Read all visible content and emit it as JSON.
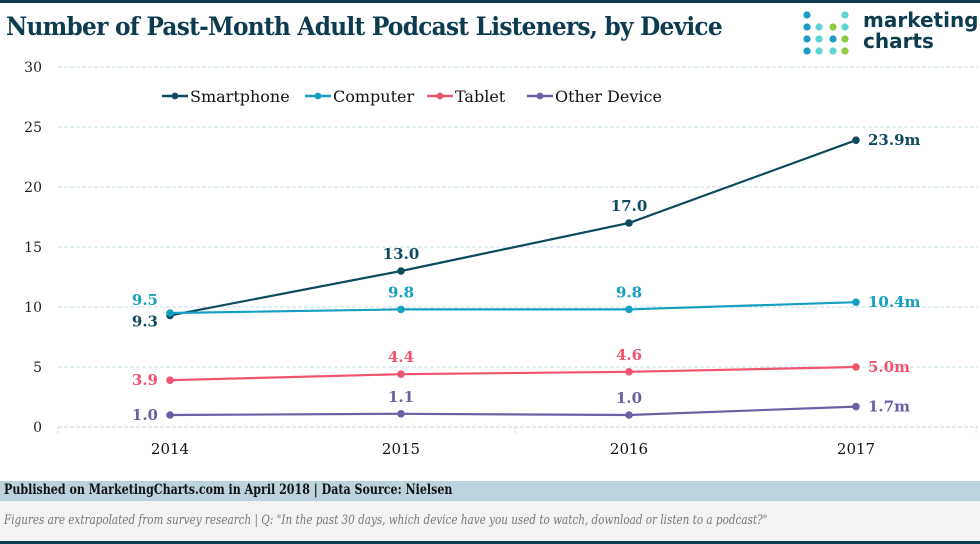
{
  "header": {
    "title": "Number of Past-Month Adult Podcast Listeners, by Device",
    "logo_line1": "marketing",
    "logo_line2": "charts"
  },
  "footer": {
    "published": "Published on MarketingCharts.com in April 2018 | Data Source: Nielsen",
    "note": "Figures are extrapolated from survey research | Q: \"In the past 30 days, which device have you used to watch, download or listen to a podcast?\""
  },
  "colors": {
    "title": "#0d3b4f",
    "smartphone": "#0d4a5e",
    "computer": "#159fc0",
    "tablet": "#f0546f",
    "other": "#6b5fa5",
    "grid": "#c5dde6",
    "footer_bar": "#bcd3de",
    "note_bar": "#f3f3f3"
  },
  "chart_data": {
    "type": "line",
    "title": "Number of Past-Month Adult Podcast Listeners, by Device",
    "xlabel": "",
    "ylabel": "",
    "units": "millions",
    "x": [
      "2014",
      "2015",
      "2016",
      "2017"
    ],
    "ylim": [
      0,
      30
    ],
    "yticks": [
      0,
      5,
      10,
      15,
      20,
      25,
      30
    ],
    "grid": true,
    "legend_position": "top-left",
    "series": [
      {
        "name": "Smartphone",
        "color_key": "smartphone",
        "values": [
          9.3,
          13.0,
          17.0,
          23.9
        ],
        "labels": [
          "9.3",
          "13.0",
          "17.0",
          "23.9m"
        ],
        "label_pos": [
          "left-below",
          "above",
          "above",
          "right"
        ]
      },
      {
        "name": "Computer",
        "color_key": "computer",
        "values": [
          9.5,
          9.8,
          9.8,
          10.4
        ],
        "labels": [
          "9.5",
          "9.8",
          "9.8",
          "10.4m"
        ],
        "label_pos": [
          "left-above",
          "above",
          "above",
          "right"
        ]
      },
      {
        "name": "Tablet",
        "color_key": "tablet",
        "values": [
          3.9,
          4.4,
          4.6,
          5.0
        ],
        "labels": [
          "3.9",
          "4.4",
          "4.6",
          "5.0m"
        ],
        "label_pos": [
          "left",
          "above",
          "above",
          "right"
        ]
      },
      {
        "name": "Other Device",
        "color_key": "other",
        "values": [
          1.0,
          1.1,
          1.0,
          1.7
        ],
        "labels": [
          "1.0",
          "1.1",
          "1.0",
          "1.7m"
        ],
        "label_pos": [
          "left",
          "above",
          "above",
          "right"
        ]
      }
    ]
  }
}
